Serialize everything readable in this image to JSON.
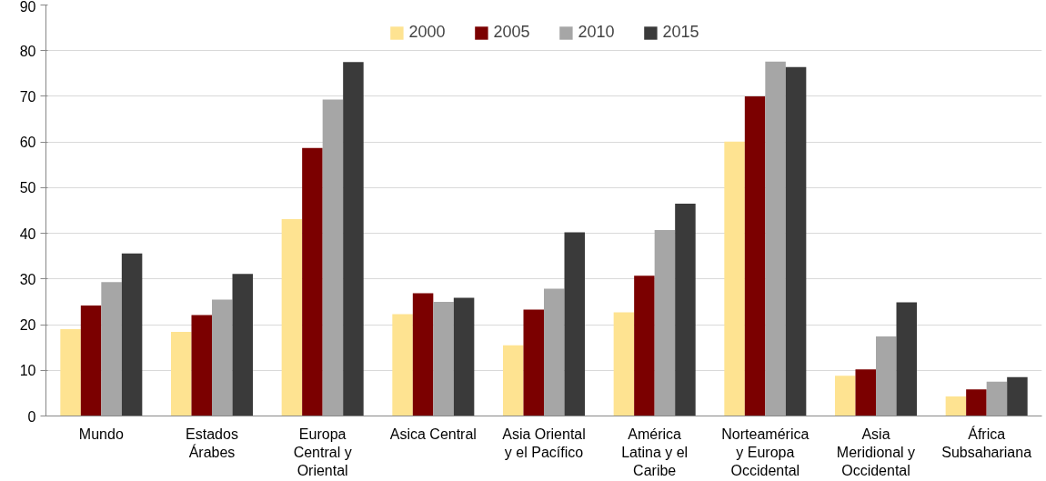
{
  "chart_data": {
    "type": "bar",
    "categories": [
      "Mundo",
      "Estados Árabes",
      "Europa Central y Oriental",
      "Asica Central",
      "Asia Oriental y el Pacífico",
      "América Latina y el Caribe",
      "Norteamérica y Europa Occidental",
      "Asia Meridional y Occidental",
      "África Subsahariana"
    ],
    "series": [
      {
        "name": "2000",
        "color": "#fee391",
        "values": [
          19.0,
          18.4,
          43.1,
          22.3,
          15.5,
          22.7,
          60.1,
          8.8,
          4.3
        ]
      },
      {
        "name": "2005",
        "color": "#7b0000",
        "values": [
          24.2,
          22.1,
          58.7,
          26.9,
          23.3,
          30.7,
          70.0,
          10.2,
          5.8
        ]
      },
      {
        "name": "2010",
        "color": "#a6a6a6",
        "values": [
          29.3,
          25.5,
          69.3,
          25.0,
          27.9,
          40.7,
          77.6,
          17.4,
          7.5
        ]
      },
      {
        "name": "2015",
        "color": "#3a3a3a",
        "values": [
          35.6,
          31.1,
          77.5,
          25.9,
          40.2,
          46.5,
          76.4,
          24.9,
          8.5
        ]
      }
    ],
    "ylim": [
      0,
      90
    ],
    "yticks": [
      0,
      10,
      20,
      30,
      40,
      50,
      60,
      70,
      80,
      90
    ],
    "grid": "y",
    "legend": "top"
  }
}
